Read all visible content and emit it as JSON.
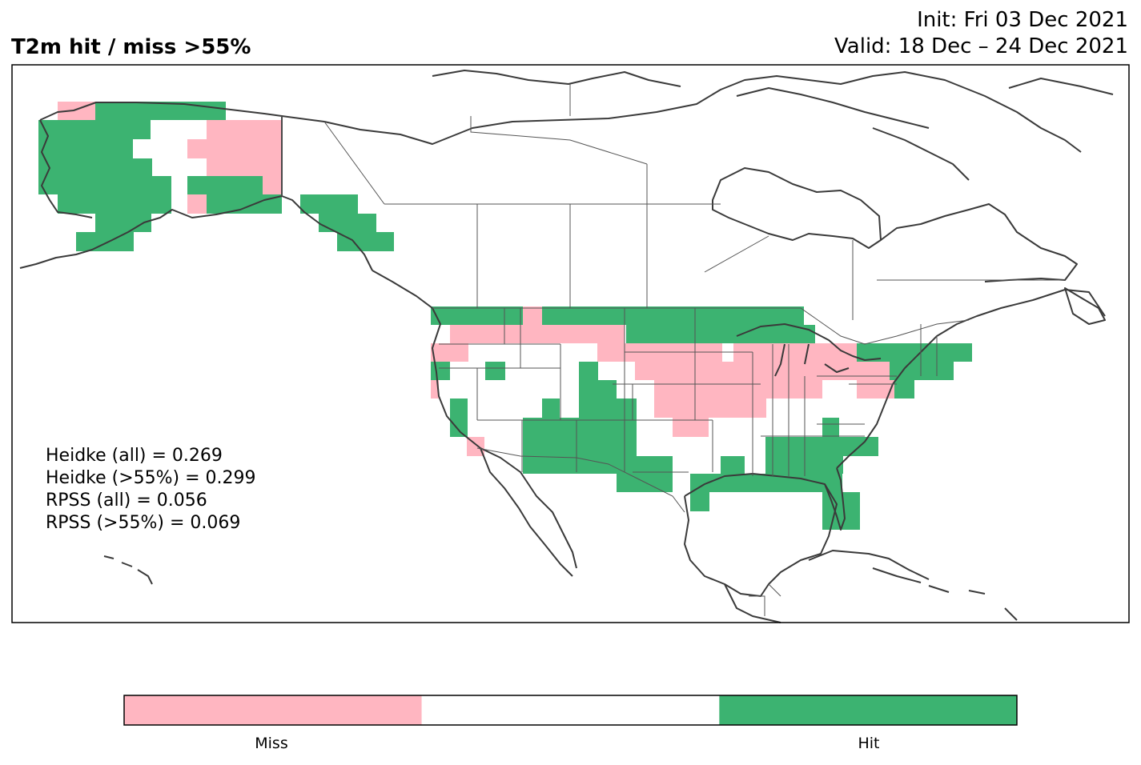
{
  "title": "T2m hit / miss  >55%",
  "init_text": "Init: Fri 03 Dec 2021",
  "valid_text": "Valid: 18 Dec – 24 Dec 2021",
  "stats": [
    "Heidke (all) = 0.269",
    "Heidke (>55%) = 0.299",
    "RPSS (all) = 0.056",
    "RPSS (>55%) = 0.069"
  ],
  "legend": {
    "categories": [
      {
        "label": "Miss",
        "color": "#ffb6c1"
      },
      {
        "label": "",
        "color": "#ffffff"
      },
      {
        "label": "Hit",
        "color": "#3cb371"
      }
    ]
  },
  "colors": {
    "miss": "#ffb6c1",
    "hit": "#3cb371",
    "coast": "#3a3a3a",
    "border": "#555555"
  }
}
